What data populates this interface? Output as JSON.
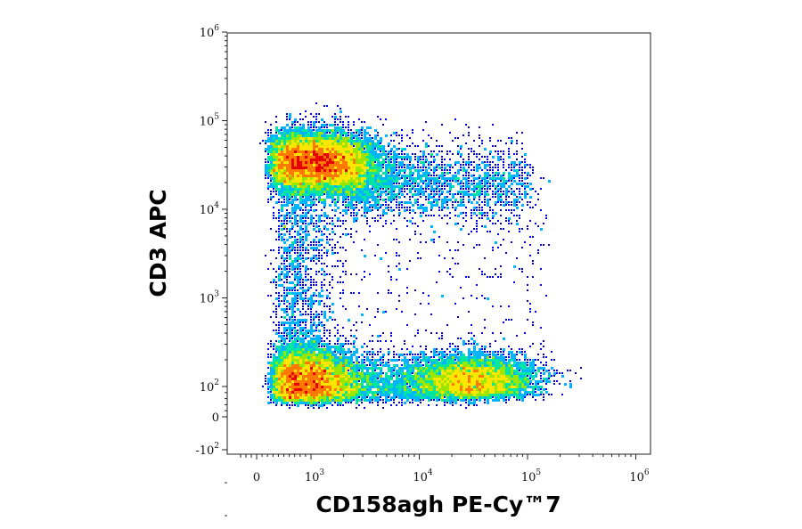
{
  "chart_data": {
    "type": "scatter",
    "subtype": "flow-cytometry-density-dot-plot",
    "xlabel": "CD158agh PE-Cy™7",
    "ylabel": "CD3 APC",
    "x_scale": "biexponential",
    "y_scale": "biexponential",
    "xlim": [
      -300,
      1000000
    ],
    "ylim": [
      -300,
      1000000
    ],
    "x_ticks": [
      {
        "label": "0",
        "exp": "",
        "value": 0
      },
      {
        "label": "10",
        "exp": "3",
        "value": 1000
      },
      {
        "label": "10",
        "exp": "4",
        "value": 10000
      },
      {
        "label": "10",
        "exp": "5",
        "value": 100000
      },
      {
        "label": "10",
        "exp": "6",
        "value": 1000000
      }
    ],
    "y_ticks": [
      {
        "label": "-10",
        "exp": "2",
        "value": -100
      },
      {
        "label": "0",
        "exp": "",
        "value": 0
      },
      {
        "label": "10",
        "exp": "2",
        "value": 100
      },
      {
        "label": "10",
        "exp": "3",
        "value": 1000
      },
      {
        "label": "10",
        "exp": "4",
        "value": 10000
      },
      {
        "label": "10",
        "exp": "5",
        "value": 100000
      },
      {
        "label": "10",
        "exp": "6",
        "value": 1000000
      }
    ],
    "populations": [
      {
        "center_x": 1100,
        "center_y": 34000,
        "spread_log_x": 0.26,
        "spread_log_y": 0.17,
        "relative_events": 0.42
      },
      {
        "center_x": 950,
        "center_y": 120,
        "spread_log_x": 0.22,
        "spread_log_y": 0.18,
        "relative_events": 0.3
      },
      {
        "center_x": 35000,
        "center_y": 120,
        "spread_log_x": 0.28,
        "spread_log_y": 0.14,
        "relative_events": 0.18
      }
    ],
    "grid": false,
    "legend": "none",
    "density_colors": [
      "#0000e6",
      "#00b4ff",
      "#00e6a0",
      "#9be600",
      "#ffe600",
      "#ff7800",
      "#e60000"
    ]
  }
}
